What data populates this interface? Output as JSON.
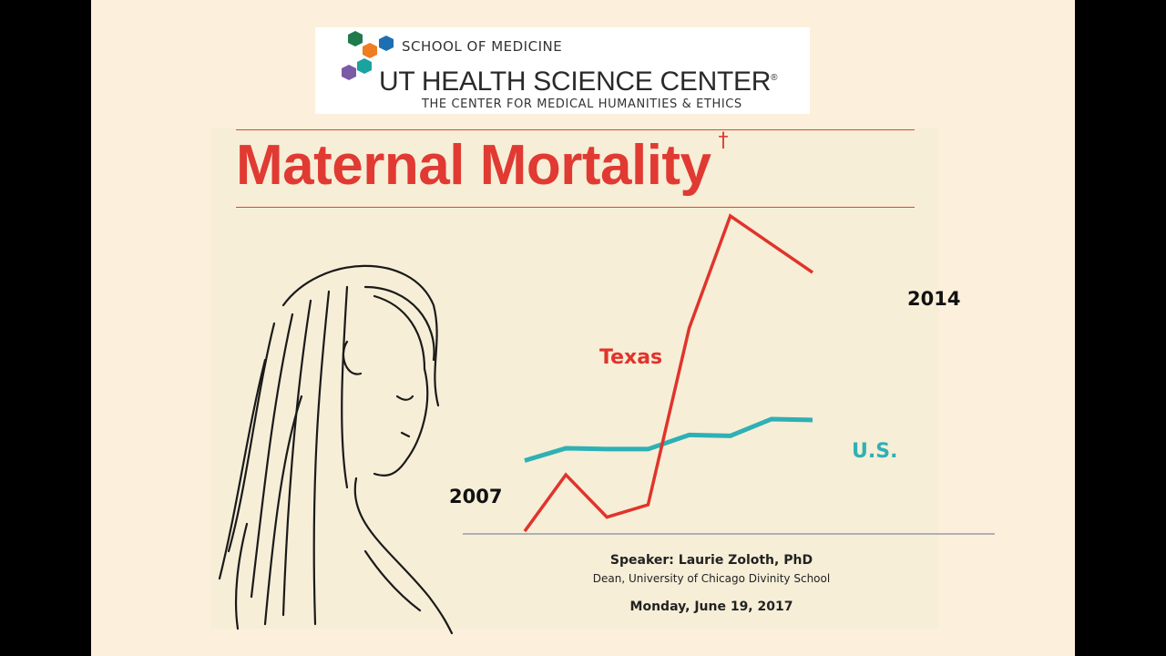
{
  "logo": {
    "line1": "SCHOOL OF MEDICINE",
    "line2": "UT HEALTH SCIENCE CENTER",
    "registered": "®",
    "line3": "THE CENTER FOR MEDICAL HUMANITIES & ETHICS",
    "hex_colors": [
      "#1f7a4d",
      "#1d6fb3",
      "#ef7d22",
      "#1aa3a0",
      "#7b5aa6"
    ]
  },
  "poster": {
    "title": "Maternal Mortality",
    "title_mark": "†",
    "speaker": "Speaker: Laurie Zoloth, PhD",
    "affiliation": "Dean, University of Chicago Divinity School",
    "date": "Monday, June 19, 2017"
  },
  "chart_data": {
    "type": "line",
    "title": "",
    "xlabel": "",
    "ylabel": "",
    "x": [
      2007,
      2008,
      2009,
      2010,
      2011,
      2012,
      2013,
      2014
    ],
    "start_label": "2007",
    "end_label": "2014",
    "ylim": [
      0,
      36
    ],
    "grid": false,
    "series": [
      {
        "name": "Texas",
        "color": "#e0342c",
        "values": [
          0.3,
          6.7,
          1.9,
          3.3,
          23.3,
          36.0,
          32.8,
          29.6
        ]
      },
      {
        "name": "U.S.",
        "color": "#2fb0b5",
        "values": [
          8.3,
          9.7,
          9.6,
          9.6,
          11.2,
          11.1,
          13.0,
          12.9
        ]
      }
    ]
  }
}
